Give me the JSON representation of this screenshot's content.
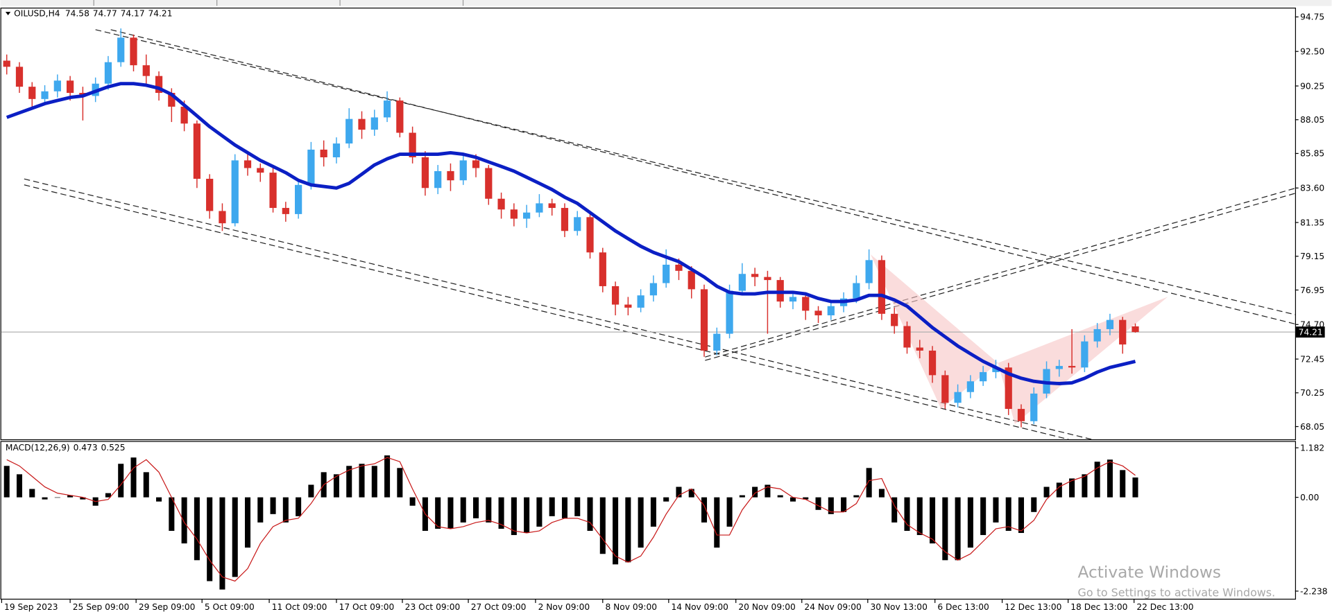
{
  "chart_data": [
    {
      "type": "candlestick",
      "symbol": "OILUSD,H4",
      "x": [
        0,
        1,
        2,
        3,
        4,
        5,
        6,
        7,
        8,
        9,
        10,
        11,
        12,
        13,
        14,
        15,
        16,
        17,
        18,
        19,
        20,
        21,
        22,
        23,
        24,
        25,
        26,
        27,
        28,
        29,
        30,
        31,
        32,
        33,
        34,
        35,
        36,
        37,
        38,
        39,
        40,
        41,
        42,
        43,
        44,
        45,
        46,
        47,
        48,
        49,
        50,
        51,
        52,
        53,
        54,
        55,
        56,
        57,
        58,
        59,
        60,
        61,
        62,
        63,
        64,
        65,
        66,
        67,
        68,
        69,
        70,
        71,
        72,
        73,
        74,
        75,
        76,
        77,
        78,
        79,
        80,
        81,
        82,
        83,
        84,
        85,
        86,
        87,
        88,
        89
      ],
      "open": [
        91.9,
        91.5,
        90.2,
        89.4,
        89.9,
        90.6,
        89.8,
        89.6,
        90.4,
        91.8,
        93.4,
        91.6,
        90.9,
        89.8,
        88.9,
        87.8,
        84.2,
        82.1,
        81.3,
        85.4,
        84.9,
        84.6,
        82.3,
        81.9,
        83.8,
        86.1,
        85.6,
        86.5,
        88.1,
        87.4,
        88.2,
        89.3,
        87.2,
        85.6,
        83.6,
        84.7,
        84.1,
        85.4,
        84.9,
        82.9,
        82.2,
        81.6,
        82.0,
        82.6,
        82.3,
        80.8,
        81.7,
        79.4,
        77.2,
        76.0,
        75.8,
        76.6,
        77.4,
        78.6,
        78.2,
        77.0,
        73.0,
        74.1,
        76.9,
        78.0,
        77.8,
        77.6,
        76.2,
        76.5,
        75.6,
        75.3,
        75.9,
        76.4,
        77.4,
        78.9,
        75.4,
        74.6,
        73.2,
        73.0,
        71.4,
        69.6,
        70.3,
        71.0,
        71.6,
        71.9,
        69.2,
        68.4,
        70.2,
        71.8,
        72.0,
        71.9,
        73.6,
        74.4,
        75.0,
        74.58
      ],
      "high": [
        92.3,
        91.8,
        90.5,
        90.3,
        91.0,
        90.9,
        90.2,
        90.8,
        92.2,
        94.0,
        93.6,
        92.3,
        91.2,
        90.1,
        89.3,
        88.0,
        84.5,
        82.6,
        85.8,
        85.9,
        85.2,
        84.9,
        82.7,
        84.2,
        86.6,
        86.7,
        86.9,
        88.8,
        88.6,
        88.7,
        89.9,
        89.5,
        87.6,
        86.0,
        85.1,
        85.2,
        85.9,
        85.8,
        85.1,
        83.3,
        82.6,
        82.5,
        83.2,
        82.9,
        82.6,
        82.1,
        81.9,
        79.7,
        77.5,
        76.5,
        77.0,
        77.9,
        79.6,
        79.0,
        78.5,
        77.3,
        74.5,
        77.3,
        78.7,
        78.4,
        78.2,
        77.8,
        76.9,
        76.8,
        75.9,
        76.3,
        76.8,
        77.9,
        79.6,
        79.2,
        75.8,
        74.9,
        73.7,
        73.3,
        71.7,
        70.8,
        71.4,
        72.0,
        72.4,
        72.2,
        69.5,
        70.6,
        72.3,
        72.4,
        74.4,
        74.0,
        74.8,
        75.4,
        75.2,
        74.77
      ],
      "low": [
        91.0,
        89.8,
        88.9,
        89.0,
        89.5,
        89.3,
        88.0,
        89.2,
        90.0,
        91.5,
        91.2,
        90.4,
        89.3,
        87.9,
        87.3,
        83.6,
        81.6,
        80.8,
        81.1,
        84.4,
        84.0,
        82.0,
        81.4,
        81.6,
        83.5,
        85.0,
        85.2,
        86.2,
        86.8,
        87.0,
        87.9,
        86.9,
        85.2,
        83.1,
        83.2,
        83.4,
        83.8,
        84.3,
        82.5,
        81.6,
        81.1,
        81.0,
        81.7,
        81.8,
        80.4,
        80.5,
        79.0,
        76.8,
        75.3,
        75.3,
        75.5,
        76.2,
        77.1,
        77.6,
        76.4,
        72.6,
        72.7,
        73.8,
        76.6,
        77.2,
        74.1,
        75.8,
        75.7,
        75.0,
        74.8,
        75.0,
        75.5,
        76.1,
        77.0,
        75.0,
        74.1,
        72.8,
        72.5,
        70.9,
        69.2,
        69.3,
        69.9,
        70.7,
        71.2,
        68.8,
        68.0,
        68.2,
        69.9,
        71.3,
        71.5,
        71.6,
        73.2,
        74.0,
        72.8,
        74.17
      ],
      "close": [
        91.5,
        90.2,
        89.4,
        89.9,
        90.6,
        89.8,
        89.6,
        90.4,
        91.8,
        93.4,
        91.6,
        90.9,
        89.8,
        88.9,
        87.8,
        84.2,
        82.1,
        81.3,
        85.4,
        84.9,
        84.6,
        82.3,
        81.9,
        83.8,
        86.1,
        85.6,
        86.5,
        88.1,
        87.4,
        88.2,
        89.3,
        87.2,
        85.6,
        83.6,
        84.7,
        84.1,
        85.4,
        84.9,
        82.9,
        82.2,
        81.6,
        82.0,
        82.6,
        82.3,
        80.8,
        81.7,
        79.4,
        77.2,
        76.0,
        75.8,
        76.6,
        77.4,
        78.6,
        78.2,
        77.0,
        73.0,
        74.1,
        76.9,
        78.0,
        77.8,
        77.6,
        76.2,
        76.5,
        75.6,
        75.3,
        75.9,
        76.4,
        77.4,
        78.9,
        75.4,
        74.6,
        73.2,
        73.0,
        71.4,
        69.6,
        70.3,
        71.0,
        71.6,
        71.9,
        69.2,
        68.4,
        70.2,
        71.8,
        72.0,
        71.9,
        73.6,
        74.4,
        75.0,
        73.4,
        74.21
      ],
      "up_color": "#3ea8ee",
      "down_color": "#d8302c",
      "ma": {
        "color": "#0b1fc4",
        "values": [
          88.2,
          88.5,
          88.8,
          89.1,
          89.3,
          89.5,
          89.6,
          89.9,
          90.2,
          90.4,
          90.4,
          90.3,
          90.1,
          89.7,
          89.0,
          88.3,
          87.6,
          87.0,
          86.4,
          85.9,
          85.4,
          85.0,
          84.6,
          84.1,
          83.8,
          83.7,
          83.6,
          83.9,
          84.5,
          85.1,
          85.5,
          85.8,
          85.8,
          85.8,
          85.8,
          85.9,
          85.8,
          85.6,
          85.3,
          85.0,
          84.7,
          84.3,
          83.9,
          83.5,
          83.0,
          82.6,
          82.0,
          81.4,
          80.8,
          80.3,
          79.8,
          79.4,
          79.1,
          78.8,
          78.3,
          77.8,
          77.2,
          76.8,
          76.7,
          76.7,
          76.8,
          76.8,
          76.8,
          76.7,
          76.4,
          76.2,
          76.2,
          76.3,
          76.6,
          76.6,
          76.3,
          75.9,
          75.2,
          74.5,
          73.9,
          73.3,
          72.8,
          72.3,
          71.9,
          71.5,
          71.2,
          71.0,
          70.9,
          70.85,
          70.9,
          71.2,
          71.6,
          71.9,
          72.1,
          72.3
        ]
      },
      "xlim": [
        -0.5,
        101.6
      ],
      "ylim": [
        67.22,
        95.3
      ],
      "yticks": [
        94.75,
        {
          "value": 92.5,
          "label": "92.50"
        },
        90.25,
        88.05,
        85.85,
        {
          "value": 83.6,
          "label": "83.60"
        },
        81.35,
        79.15,
        76.95,
        {
          "value": 74.7,
          "label": "74.70"
        },
        72.45,
        70.25,
        68.05
      ],
      "xticks": [
        {
          "value": -0.4,
          "label": "19 Sep 2023"
        },
        {
          "value": 5.0,
          "label": "25 Sep 09:00"
        },
        {
          "value": 10.2,
          "label": "29 Sep 09:00"
        },
        {
          "value": 15.4,
          "label": "5 Oct 09:00"
        },
        {
          "value": 20.7,
          "label": "11 Oct 09:00"
        },
        {
          "value": 26.0,
          "label": "17 Oct 09:00"
        },
        {
          "value": 31.2,
          "label": "23 Oct 09:00"
        },
        {
          "value": 36.4,
          "label": "27 Oct 09:00"
        },
        {
          "value": 41.7,
          "label": "2 Nov 09:00"
        },
        {
          "value": 47.0,
          "label": "8 Nov 09:00"
        },
        {
          "value": 52.2,
          "label": "14 Nov 09:00"
        },
        {
          "value": 57.5,
          "label": "20 Nov 09:00"
        },
        {
          "value": 62.7,
          "label": "24 Nov 09:00"
        },
        {
          "value": 67.9,
          "label": "30 Nov 13:00"
        },
        {
          "value": 73.2,
          "label": "6 Dec 13:00"
        },
        {
          "value": 78.5,
          "label": "12 Dec 13:00"
        },
        {
          "value": 83.7,
          "label": "18 Dec 13:00"
        },
        {
          "value": 88.9,
          "label": "22 Dec 13:00"
        }
      ]
    },
    {
      "type": "macd",
      "title": "MACD(12,26,9)",
      "color": "#000000",
      "signal_color": "#c81818",
      "values": [
        0.75,
        0.55,
        0.2,
        -0.05,
        0.0,
        0.05,
        -0.05,
        -0.2,
        0.1,
        0.8,
        0.95,
        0.6,
        -0.1,
        -0.8,
        -1.1,
        -1.5,
        -2.0,
        -2.2,
        -1.9,
        -1.2,
        -0.6,
        -0.4,
        -0.6,
        -0.45,
        0.3,
        0.6,
        0.55,
        0.75,
        0.8,
        0.75,
        1.0,
        0.7,
        -0.2,
        -0.8,
        -0.75,
        -0.75,
        -0.6,
        -0.5,
        -0.6,
        -0.75,
        -0.9,
        -0.85,
        -0.7,
        -0.45,
        -0.5,
        -0.45,
        -0.8,
        -1.35,
        -1.6,
        -1.55,
        -1.2,
        -0.7,
        -0.1,
        0.25,
        0.2,
        -0.6,
        -1.2,
        -0.7,
        0.05,
        0.25,
        0.3,
        0.05,
        -0.1,
        -0.05,
        -0.3,
        -0.4,
        -0.35,
        0.05,
        0.7,
        0.2,
        -0.6,
        -0.8,
        -0.9,
        -1.1,
        -1.5,
        -1.5,
        -1.2,
        -0.9,
        -0.6,
        -0.8,
        -0.85,
        -0.35,
        0.25,
        0.35,
        0.45,
        0.55,
        0.85,
        0.9,
        0.65,
        0.473
      ],
      "signal": [
        0.9,
        0.75,
        0.5,
        0.25,
        0.1,
        0.05,
        0.0,
        -0.1,
        -0.05,
        0.3,
        0.7,
        0.9,
        0.6,
        0.0,
        -0.6,
        -1.0,
        -1.5,
        -1.9,
        -2.0,
        -1.7,
        -1.1,
        -0.7,
        -0.55,
        -0.5,
        -0.15,
        0.3,
        0.5,
        0.65,
        0.75,
        0.8,
        0.95,
        0.85,
        0.2,
        -0.4,
        -0.7,
        -0.75,
        -0.7,
        -0.6,
        -0.55,
        -0.65,
        -0.8,
        -0.85,
        -0.8,
        -0.6,
        -0.5,
        -0.5,
        -0.6,
        -1.0,
        -1.4,
        -1.55,
        -1.4,
        -0.95,
        -0.4,
        0.05,
        0.2,
        -0.2,
        -0.9,
        -0.9,
        -0.3,
        0.1,
        0.25,
        0.2,
        0.0,
        -0.05,
        -0.2,
        -0.35,
        -0.35,
        -0.15,
        0.4,
        0.45,
        -0.2,
        -0.65,
        -0.85,
        -1.0,
        -1.3,
        -1.5,
        -1.35,
        -1.05,
        -0.75,
        -0.7,
        -0.8,
        -0.55,
        -0.05,
        0.25,
        0.4,
        0.5,
        0.7,
        0.85,
        0.75,
        0.525
      ],
      "ylim": [
        -2.42,
        1.324
      ],
      "yticks": [
        1.182,
        {
          "value": 0,
          "label": "0.00"
        },
        -2.238
      ]
    }
  ],
  "watermark": {
    "title": "Activate Windows",
    "subtitle": "Go to Settings to activate Windows."
  }
}
